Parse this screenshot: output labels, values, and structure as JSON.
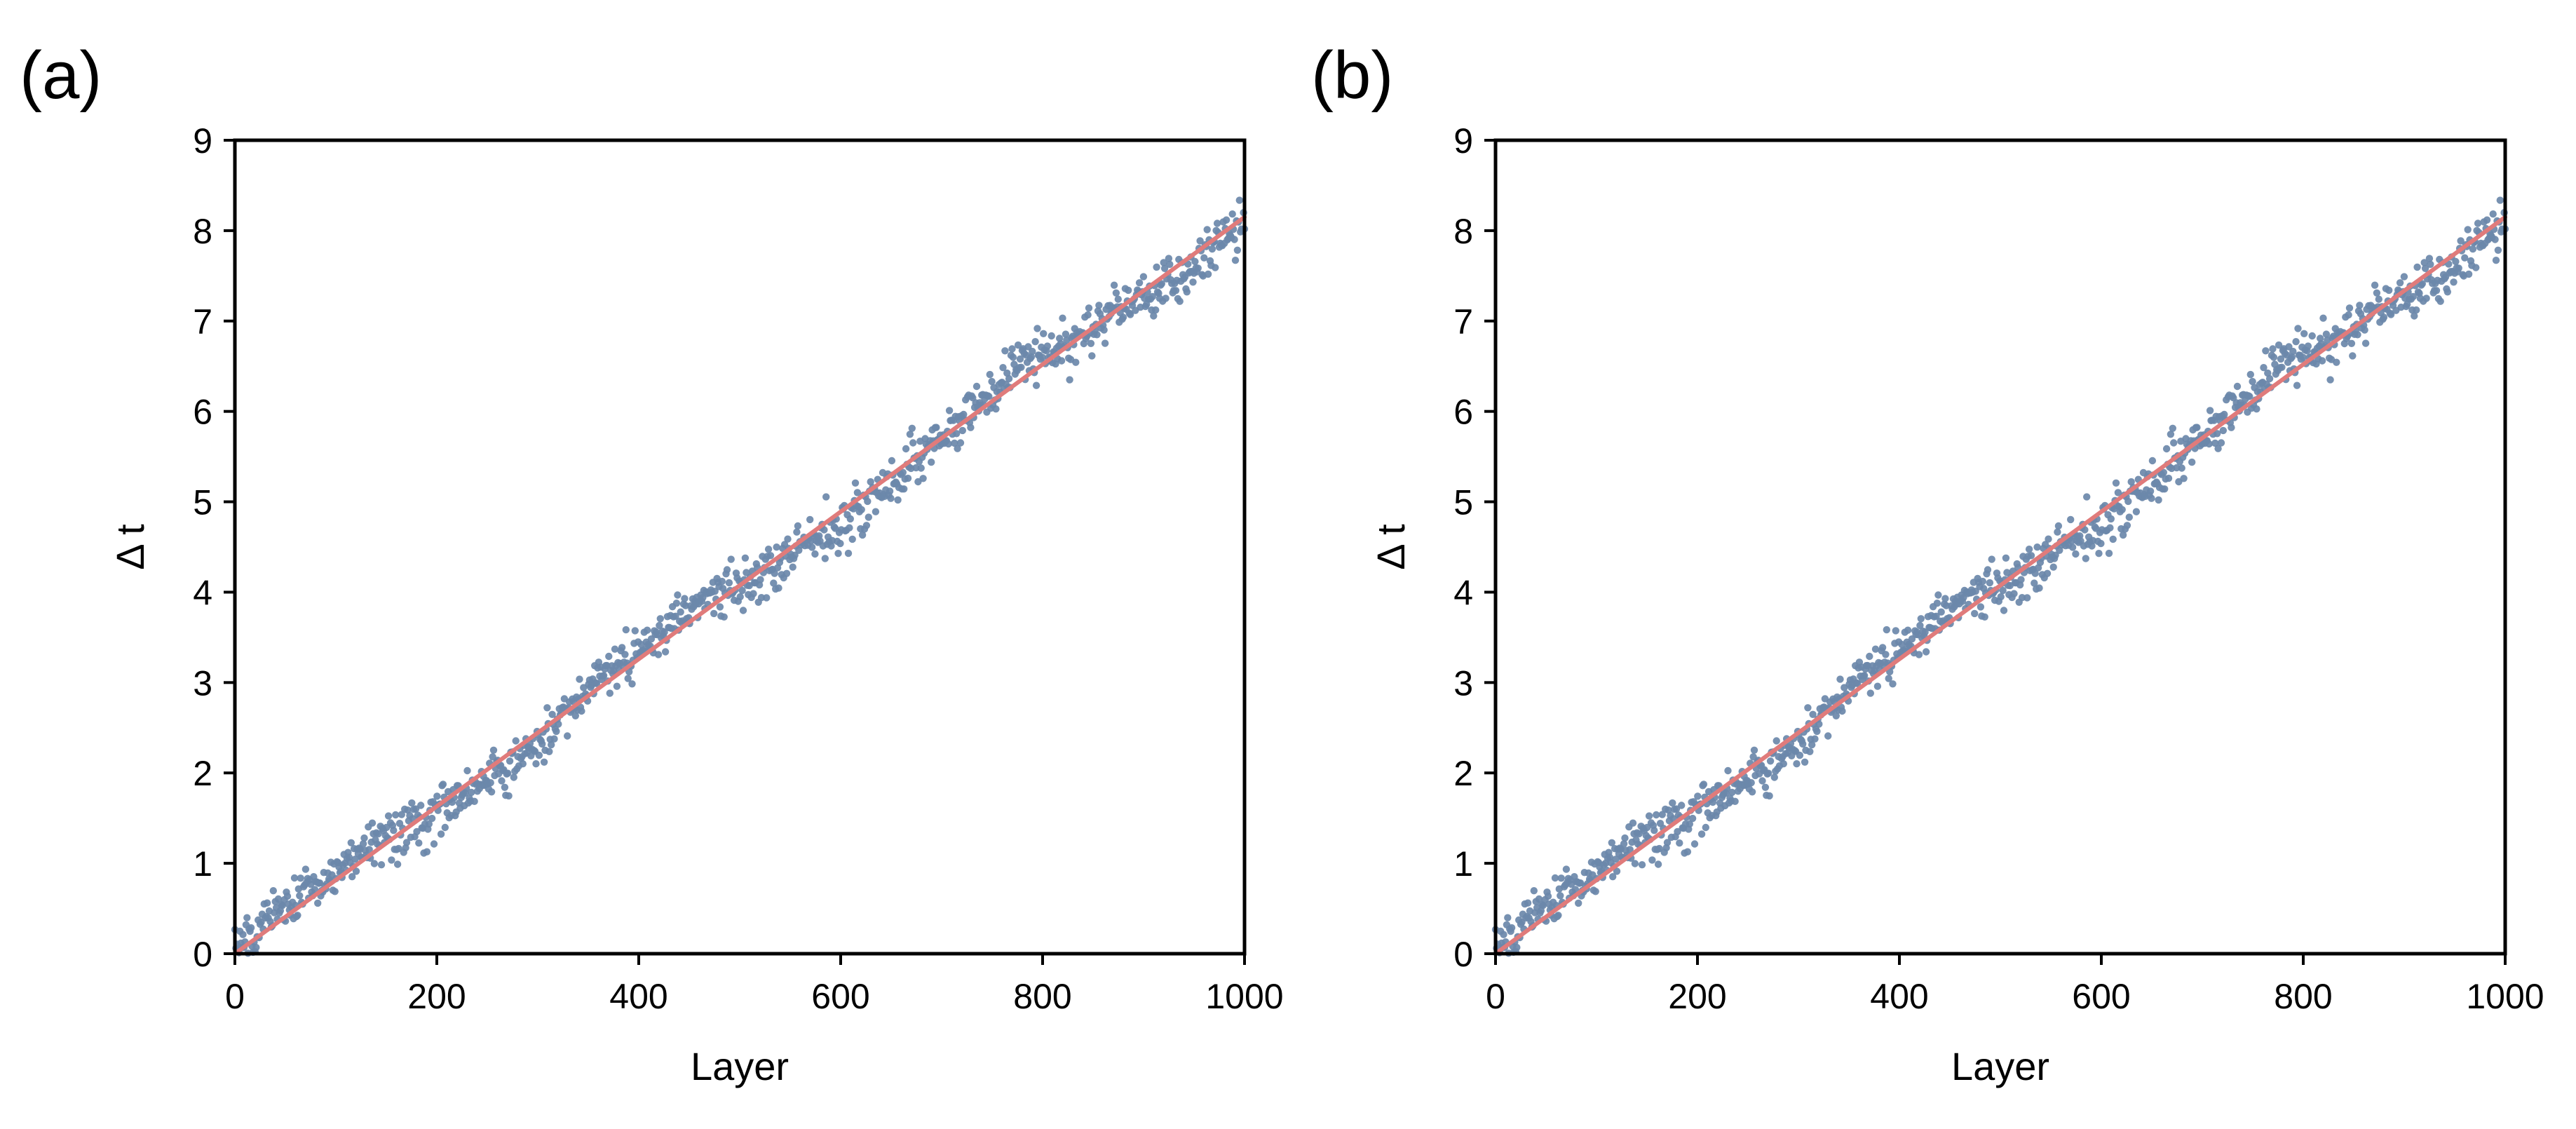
{
  "chart_data": [
    {
      "type": "scatter",
      "panel_label": "(a)",
      "xlabel": "Layer",
      "ylabel": "Δ t",
      "xlim": [
        0,
        1000
      ],
      "ylim": [
        0,
        9
      ],
      "xticks": [
        "0",
        "200",
        "400",
        "600",
        "800",
        "1000"
      ],
      "yticks": [
        "0",
        "1",
        "2",
        "3",
        "4",
        "5",
        "6",
        "7",
        "8",
        "9"
      ],
      "grid": false,
      "legend": "none",
      "scatter": {
        "n_points": 1000,
        "x_range": [
          0,
          1000
        ],
        "approx_y_start": 0.0,
        "approx_y_end": 8.15,
        "approx_spread": 0.3
      },
      "fit_line": {
        "x": [
          0,
          1000
        ],
        "y": [
          0,
          8.15
        ]
      },
      "colors": {
        "points": "#6b88aa",
        "line": "#e07b7b"
      }
    },
    {
      "type": "scatter",
      "panel_label": "(b)",
      "xlabel": "Layer",
      "ylabel": "Δ t",
      "xlim": [
        0,
        1000
      ],
      "ylim": [
        0,
        9
      ],
      "xticks": [
        "0",
        "200",
        "400",
        "600",
        "800",
        "1000"
      ],
      "yticks": [
        "0",
        "1",
        "2",
        "3",
        "4",
        "5",
        "6",
        "7",
        "8",
        "9"
      ],
      "grid": false,
      "legend": "none",
      "scatter": {
        "n_points": 1000,
        "x_range": [
          0,
          1000
        ],
        "approx_y_start": 0.0,
        "approx_y_end": 8.15,
        "approx_spread": 0.3
      },
      "fit_line": {
        "x": [
          0,
          1000
        ],
        "y": [
          0,
          8.15
        ]
      },
      "colors": {
        "points": "#6b88aa",
        "line": "#e07b7b"
      }
    }
  ]
}
